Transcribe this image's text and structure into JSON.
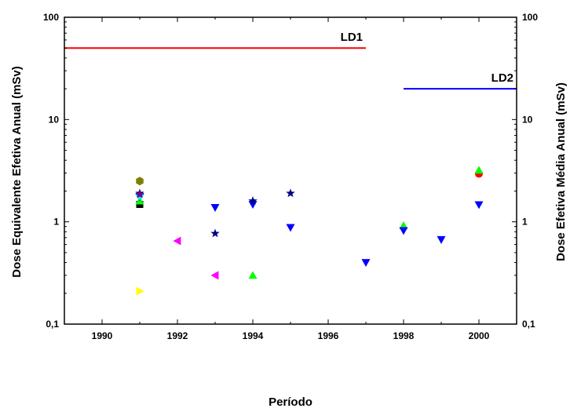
{
  "chart_data": {
    "type": "scatter",
    "xlabel": "Período",
    "ylabel": "Dose Equivalente Efetiva Anual (mSv)",
    "ylabel_right": "Dose Efetiva Média Anual (mSv)",
    "xlim": [
      1989,
      2001
    ],
    "ylim": [
      0.1,
      100
    ],
    "yscale": "log",
    "x_ticks": [
      1990,
      1992,
      1994,
      1996,
      1998,
      2000
    ],
    "y_ticks": [
      {
        "value": 0.1,
        "label": "0,1"
      },
      {
        "value": 1,
        "label": "1"
      },
      {
        "value": 10,
        "label": "10"
      },
      {
        "value": 100,
        "label": "100"
      }
    ],
    "grid": false,
    "reference_lines": [
      {
        "label": "LD1",
        "y": 50,
        "x_start": 1989,
        "x_end": 1997,
        "color": "#ff0000"
      },
      {
        "label": "LD2",
        "y": 20,
        "x_start": 1998,
        "x_end": 2001,
        "color": "#0000ff"
      }
    ],
    "series": [
      {
        "marker": "square",
        "color": "#000000",
        "points": [
          [
            1991,
            1.48
          ]
        ]
      },
      {
        "marker": "circle",
        "color": "#ff0000",
        "points": [
          [
            2000,
            2.95
          ]
        ]
      },
      {
        "marker": "triangle-up",
        "color": "#00ff00",
        "points": [
          [
            1991,
            1.6
          ],
          [
            1994,
            0.3
          ],
          [
            1998,
            0.92
          ],
          [
            2000,
            3.2
          ]
        ]
      },
      {
        "marker": "triangle-down",
        "color": "#0000ff",
        "points": [
          [
            1991,
            1.75
          ],
          [
            1993,
            1.38
          ],
          [
            1994,
            1.48
          ],
          [
            1995,
            0.88
          ],
          [
            1997,
            0.4
          ],
          [
            1998,
            0.82
          ],
          [
            1999,
            0.67
          ],
          [
            2000,
            1.47
          ]
        ]
      },
      {
        "marker": "diamond",
        "color": "#00ffff",
        "points": [
          [
            1991,
            1.8
          ]
        ]
      },
      {
        "marker": "triangle-left",
        "color": "#ff00ff",
        "points": [
          [
            1992,
            0.65
          ],
          [
            1993,
            0.3
          ]
        ]
      },
      {
        "marker": "triangle-right",
        "color": "#ffff00",
        "points": [
          [
            1991,
            0.21
          ]
        ]
      },
      {
        "marker": "hexagon",
        "color": "#808000",
        "points": [
          [
            1991,
            2.5
          ]
        ]
      },
      {
        "marker": "star",
        "color": "#000080",
        "points": [
          [
            1991,
            1.9
          ],
          [
            1993,
            0.77
          ],
          [
            1994,
            1.6
          ],
          [
            1995,
            1.9
          ]
        ]
      },
      {
        "marker": "star",
        "color": "#800080",
        "points": [
          [
            1991,
            1.85
          ]
        ]
      }
    ]
  }
}
